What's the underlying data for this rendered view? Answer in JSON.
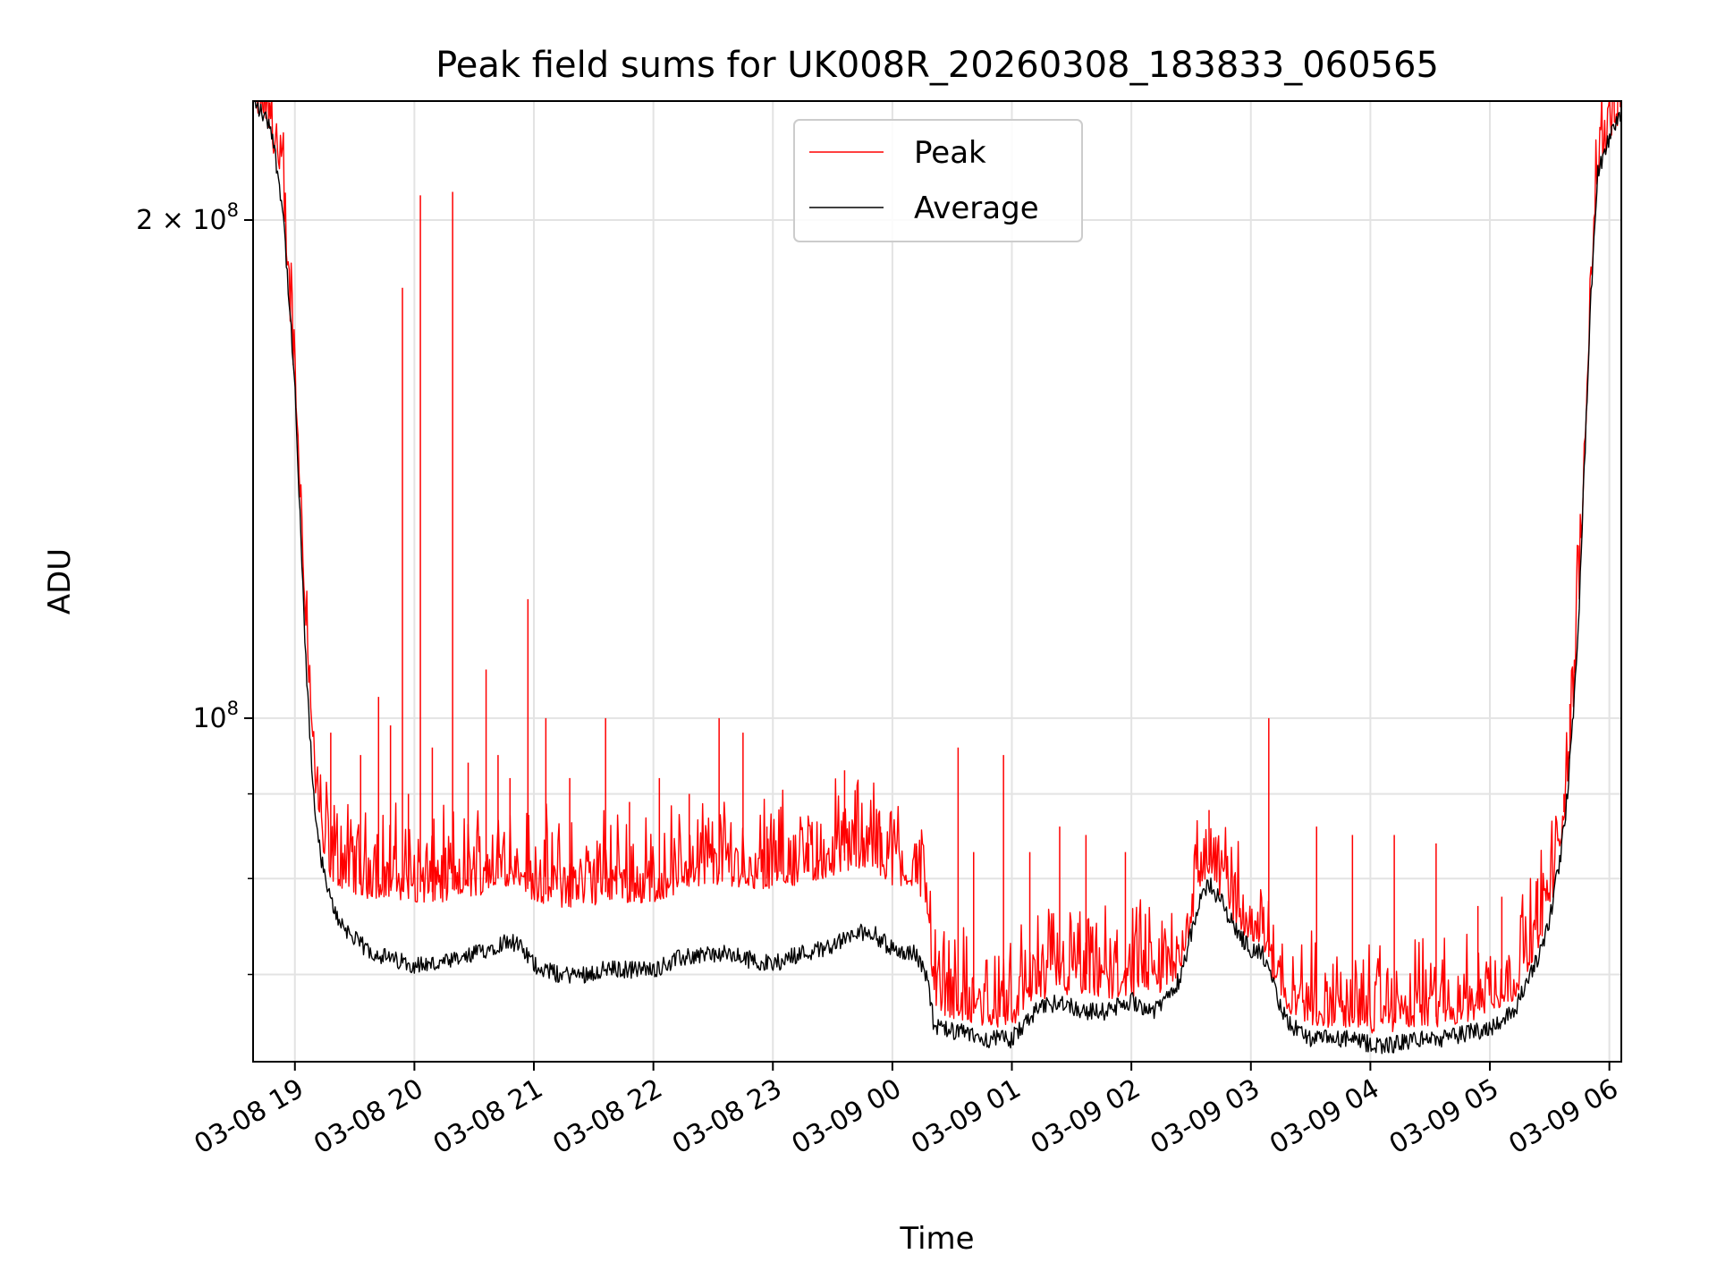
{
  "chart_data": {
    "type": "line",
    "title": "Peak field sums for UK008R_20260308_183833_060565",
    "xlabel": "Time",
    "ylabel": "ADU",
    "yscale": "log",
    "grid": true,
    "legend_position": "upper-center",
    "x_range_hours": [
      18.65,
      30.1
    ],
    "ylim": [
      62000000,
      236000000
    ],
    "x_ticks": [
      {
        "hour": 19,
        "label": "03-08 19"
      },
      {
        "hour": 20,
        "label": "03-08 20"
      },
      {
        "hour": 21,
        "label": "03-08 21"
      },
      {
        "hour": 22,
        "label": "03-08 22"
      },
      {
        "hour": 23,
        "label": "03-08 23"
      },
      {
        "hour": 24,
        "label": "03-09 00"
      },
      {
        "hour": 25,
        "label": "03-09 01"
      },
      {
        "hour": 26,
        "label": "03-09 02"
      },
      {
        "hour": 27,
        "label": "03-09 03"
      },
      {
        "hour": 28,
        "label": "03-09 04"
      },
      {
        "hour": 29,
        "label": "03-09 05"
      },
      {
        "hour": 30,
        "label": "03-09 06"
      }
    ],
    "y_major_ticks": [
      {
        "value": 100000000,
        "label_base": "10",
        "label_exp": "8"
      },
      {
        "value": 200000000,
        "label_base": "2 × 10",
        "label_exp": "8"
      }
    ],
    "y_minor_ticks": [
      70000000,
      80000000,
      90000000
    ],
    "series": [
      {
        "name": "Peak",
        "color": "#ff0000",
        "x_hours": [
          18.65,
          18.8,
          18.9,
          19.0,
          19.05,
          19.1,
          19.15,
          19.2,
          19.25,
          19.3,
          19.35,
          19.4,
          19.5,
          19.6,
          19.8,
          20.0,
          20.2,
          20.4,
          20.6,
          20.8,
          20.9,
          21.0,
          21.2,
          21.4,
          21.6,
          21.8,
          22.0,
          22.2,
          22.4,
          22.6,
          22.8,
          23.0,
          23.2,
          23.4,
          23.6,
          23.8,
          24.0,
          24.2,
          24.3,
          24.35,
          24.6,
          24.8,
          25.0,
          25.2,
          25.4,
          25.6,
          25.8,
          26.0,
          26.2,
          26.4,
          26.5,
          26.6,
          26.65,
          26.75,
          26.9,
          27.0,
          27.1,
          27.2,
          27.3,
          27.5,
          27.8,
          28.0,
          28.2,
          28.4,
          28.6,
          28.8,
          29.0,
          29.2,
          29.3,
          29.4,
          29.5,
          29.6,
          29.65,
          29.7,
          29.75,
          29.8,
          29.85,
          29.9,
          30.0,
          30.1
        ],
        "values": [
          236000000,
          228000000,
          205000000,
          160000000,
          133000000,
          112000000,
          95000000,
          87000000,
          83000000,
          81000000,
          80000000,
          80000000,
          79500000,
          79000000,
          79000000,
          78500000,
          78500000,
          79000000,
          79500000,
          80500000,
          80000000,
          78500000,
          78000000,
          78000000,
          78500000,
          78500000,
          78500000,
          79500000,
          80500000,
          80500000,
          80000000,
          80000000,
          80500000,
          81000000,
          82000000,
          82500000,
          80500000,
          80000000,
          77000000,
          67500000,
          66500000,
          66000000,
          66000000,
          68500000,
          69000000,
          68500000,
          68500000,
          69000000,
          68500000,
          71000000,
          75500000,
          80500000,
          81500000,
          79000000,
          75500000,
          74500000,
          73500000,
          70000000,
          67500000,
          66000000,
          66000000,
          65500000,
          65500000,
          66000000,
          66000000,
          66500000,
          67000000,
          68500000,
          71000000,
          73500000,
          77000000,
          85000000,
          92000000,
          103000000,
          120000000,
          150000000,
          185000000,
          215000000,
          226000000,
          234000000
        ]
      },
      {
        "name": "Average",
        "color": "#000000",
        "x_hours": [
          18.65,
          18.8,
          18.9,
          19.0,
          19.05,
          19.1,
          19.15,
          19.2,
          19.25,
          19.3,
          19.35,
          19.4,
          19.5,
          19.6,
          19.8,
          20.0,
          20.2,
          20.4,
          20.6,
          20.8,
          20.9,
          21.0,
          21.2,
          21.4,
          21.6,
          21.8,
          22.0,
          22.2,
          22.4,
          22.6,
          22.8,
          23.0,
          23.2,
          23.4,
          23.6,
          23.8,
          24.0,
          24.2,
          24.3,
          24.35,
          24.6,
          24.8,
          25.0,
          25.2,
          25.4,
          25.6,
          25.8,
          26.0,
          26.2,
          26.4,
          26.5,
          26.6,
          26.65,
          26.75,
          26.9,
          27.0,
          27.1,
          27.2,
          27.3,
          27.5,
          27.8,
          28.0,
          28.2,
          28.4,
          28.6,
          28.8,
          29.0,
          29.2,
          29.3,
          29.4,
          29.5,
          29.6,
          29.65,
          29.7,
          29.75,
          29.8,
          29.85,
          29.9,
          30.0,
          30.1
        ],
        "values": [
          236000000,
          228000000,
          203000000,
          158000000,
          128000000,
          105000000,
          91000000,
          84000000,
          80000000,
          77500000,
          76000000,
          75000000,
          73500000,
          72500000,
          71500000,
          71000000,
          71000000,
          71500000,
          72500000,
          73500000,
          72500000,
          71000000,
          70000000,
          70000000,
          70500000,
          70500000,
          70500000,
          71500000,
          72000000,
          72000000,
          71500000,
          71000000,
          72000000,
          72500000,
          73500000,
          74500000,
          72500000,
          72000000,
          69500000,
          65000000,
          64500000,
          64000000,
          64000000,
          66500000,
          67500000,
          66500000,
          66500000,
          67500000,
          66500000,
          69500000,
          74000000,
          78500000,
          79500000,
          77500000,
          74000000,
          72500000,
          72000000,
          68500000,
          65500000,
          64000000,
          64000000,
          63500000,
          63500000,
          64000000,
          64000000,
          64500000,
          65000000,
          66500000,
          69000000,
          71500000,
          75500000,
          83500000,
          90000000,
          101000000,
          118000000,
          148000000,
          182000000,
          213000000,
          224000000,
          232000000
        ]
      }
    ],
    "spikes": {
      "series": "Peak",
      "x_hours": [
        19.3,
        19.55,
        19.7,
        19.8,
        19.9,
        19.95,
        20.05,
        20.15,
        20.32,
        20.45,
        20.6,
        20.7,
        20.8,
        20.95,
        21.1,
        21.3,
        21.6,
        21.8,
        22.05,
        22.3,
        22.55,
        22.75,
        22.95,
        23.3,
        23.6,
        23.9,
        24.2,
        24.55,
        24.68,
        24.93,
        25.15,
        25.4,
        25.62,
        25.95,
        26.65,
        27.15,
        27.55,
        27.85,
        28.2,
        28.55,
        28.9,
        29.1,
        29.4,
        29.62,
        29.67
      ],
      "values": [
        98000000,
        95000000,
        103000000,
        99000000,
        182000000,
        90000000,
        207000000,
        96000000,
        208000000,
        94000000,
        107000000,
        95000000,
        92000000,
        118000000,
        100000000,
        92000000,
        100000000,
        89000000,
        92000000,
        90000000,
        100000000,
        98000000,
        86000000,
        84000000,
        93000000,
        86000000,
        84000000,
        96000000,
        83000000,
        95000000,
        83000000,
        86000000,
        85000000,
        83000000,
        88000000,
        100000000,
        86000000,
        85000000,
        85000000,
        84000000,
        77000000,
        78000000,
        80000000,
        90000000,
        102000000
      ]
    }
  }
}
